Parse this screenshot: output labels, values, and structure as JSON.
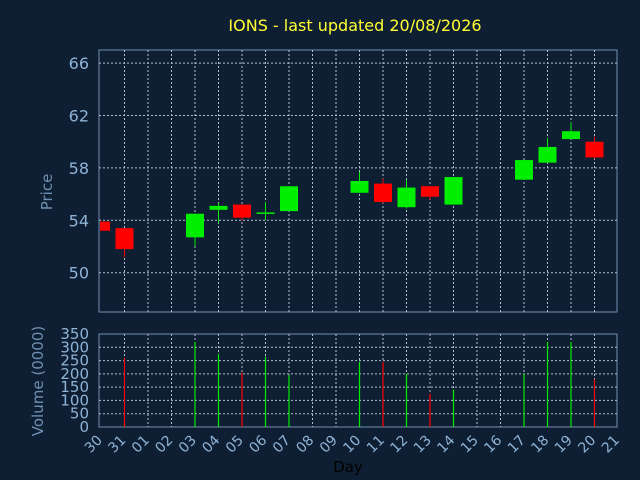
{
  "chart_data": {
    "type": "candlestick",
    "title": "IONS - last updated 20/08/2026",
    "xlabel": "Day",
    "price_panel": {
      "ylabel": "Price",
      "ylim": [
        47,
        67
      ],
      "yticks": [
        50,
        54,
        58,
        62,
        66
      ]
    },
    "volume_panel": {
      "ylabel": "Volume (0000)",
      "ylim": [
        0,
        350
      ],
      "yticks": [
        0,
        50,
        100,
        150,
        200,
        250,
        300,
        350
      ]
    },
    "x_tick_labels": [
      "30",
      "31",
      "01",
      "02",
      "03",
      "04",
      "05",
      "06",
      "07",
      "08",
      "09",
      "10",
      "11",
      "12",
      "13",
      "14",
      "15",
      "16",
      "17",
      "18",
      "19",
      "20",
      "21"
    ],
    "grid": true,
    "colors": {
      "background": "#0f1f33",
      "frame": "#6f8fb0",
      "grid": "#b0c0d0",
      "up": "#00ee00",
      "down": "#ff0000",
      "title": "#ffff33",
      "ticks": "#8fb3d6"
    },
    "candles": [
      {
        "day": "30",
        "open": 53.9,
        "high": 53.9,
        "low": 53.2,
        "close": 53.2,
        "volume": 0
      },
      {
        "day": "31",
        "open": 53.4,
        "high": 53.4,
        "low": 51.2,
        "close": 51.8,
        "volume": 260
      },
      {
        "day": "03",
        "open": 52.7,
        "high": 54.5,
        "low": 52.0,
        "close": 54.5,
        "volume": 320
      },
      {
        "day": "04",
        "open": 54.8,
        "high": 55.3,
        "low": 53.8,
        "close": 55.1,
        "volume": 275
      },
      {
        "day": "05",
        "open": 55.2,
        "high": 55.2,
        "low": 54.0,
        "close": 54.2,
        "volume": 205
      },
      {
        "day": "06",
        "open": 54.6,
        "high": 55.4,
        "low": 54.0,
        "close": 54.6,
        "volume": 265
      },
      {
        "day": "07",
        "open": 54.7,
        "high": 56.6,
        "low": 54.7,
        "close": 56.6,
        "volume": 195
      },
      {
        "day": "10",
        "open": 56.1,
        "high": 57.7,
        "low": 56.1,
        "close": 57.0,
        "volume": 245
      },
      {
        "day": "11",
        "open": 56.8,
        "high": 57.2,
        "low": 55.3,
        "close": 55.4,
        "volume": 245
      },
      {
        "day": "12",
        "open": 55.0,
        "high": 57.1,
        "low": 54.9,
        "close": 56.5,
        "volume": 200
      },
      {
        "day": "13",
        "open": 56.6,
        "high": 56.6,
        "low": 55.6,
        "close": 55.8,
        "volume": 125
      },
      {
        "day": "14",
        "open": 55.2,
        "high": 57.3,
        "low": 55.2,
        "close": 57.3,
        "volume": 140
      },
      {
        "day": "17",
        "open": 57.1,
        "high": 58.6,
        "low": 57.1,
        "close": 58.6,
        "volume": 200
      },
      {
        "day": "18",
        "open": 58.4,
        "high": 60.3,
        "low": 58.4,
        "close": 59.6,
        "volume": 320
      },
      {
        "day": "19",
        "open": 60.2,
        "high": 61.5,
        "low": 60.2,
        "close": 60.8,
        "volume": 320
      },
      {
        "day": "20",
        "open": 60.0,
        "high": 60.4,
        "low": 58.7,
        "close": 58.8,
        "volume": 180
      }
    ]
  }
}
